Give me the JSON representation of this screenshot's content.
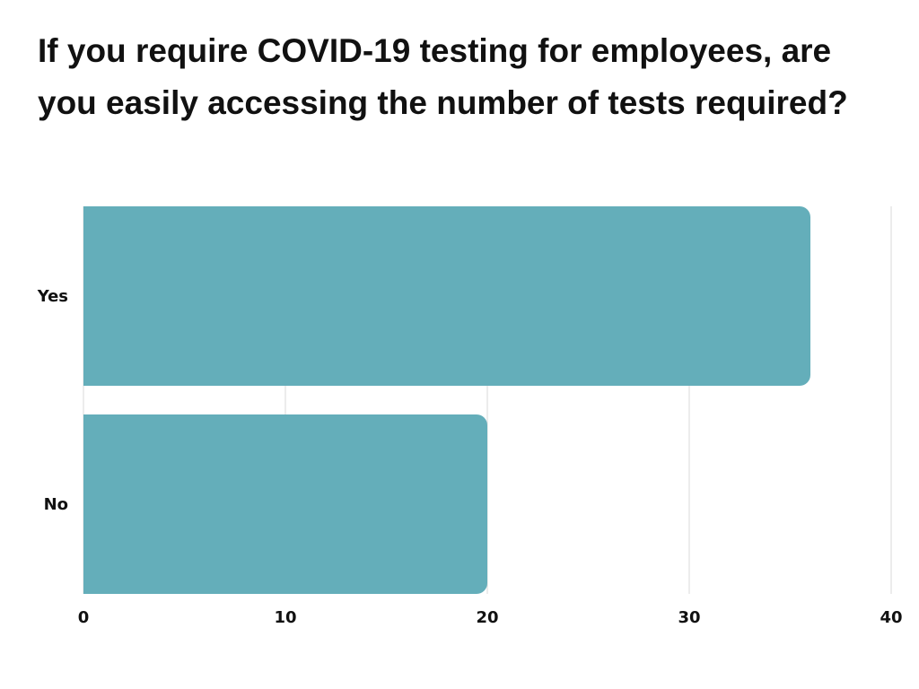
{
  "chart_data": {
    "type": "bar",
    "orientation": "horizontal",
    "title": "If you require COVID-19 testing for employees, are you easily accessing the number of tests required?",
    "categories": [
      "Yes",
      "No"
    ],
    "values": [
      36,
      20
    ],
    "xlim": [
      0,
      40
    ],
    "xticks": [
      "0",
      "10",
      "20",
      "30",
      "40"
    ],
    "xlabel": "",
    "ylabel": "",
    "grid": "vertical",
    "legend": "none",
    "bar_color": "#64aeba",
    "grid_color": "#d9d9d9"
  }
}
